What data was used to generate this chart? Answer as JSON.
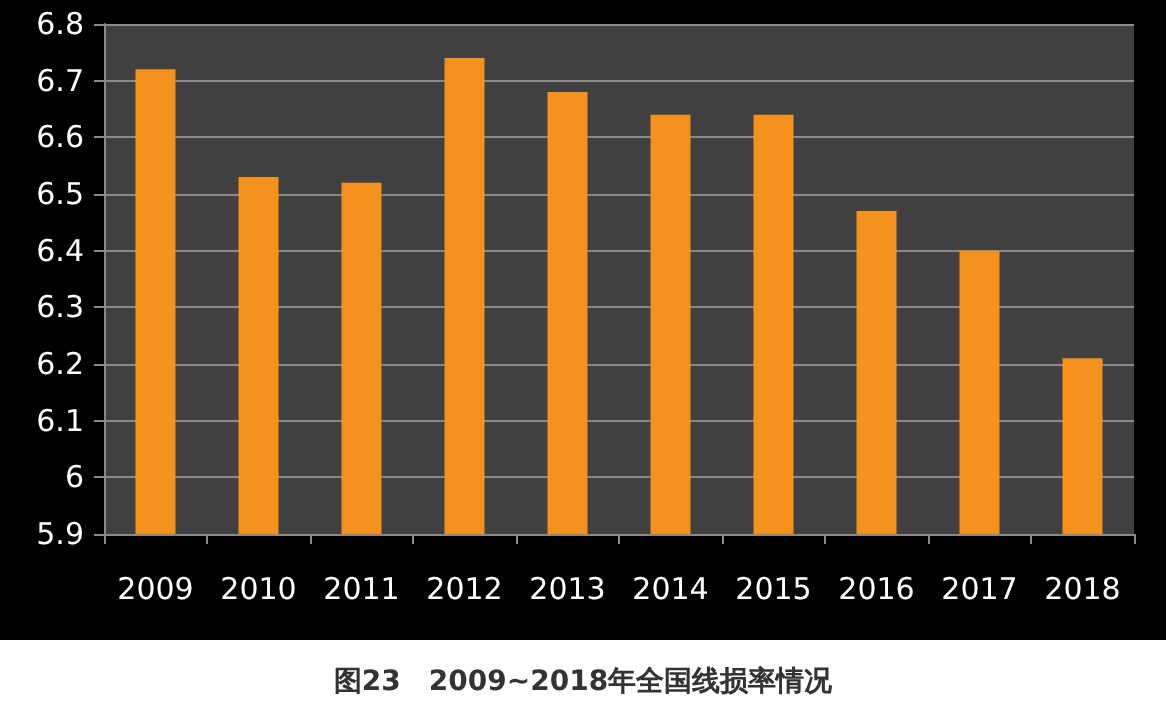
{
  "chart_data": {
    "type": "bar",
    "title": "图23　2009~2018年全国线损率情况",
    "categories": [
      "2009",
      "2010",
      "2011",
      "2012",
      "2013",
      "2014",
      "2015",
      "2016",
      "2017",
      "2018"
    ],
    "values": [
      6.72,
      6.53,
      6.52,
      6.74,
      6.68,
      6.64,
      6.64,
      6.47,
      6.4,
      6.21
    ],
    "color": "#f5921e",
    "ylim": [
      5.9,
      6.8
    ],
    "yticks": [
      5.9,
      6,
      6.1,
      6.2,
      6.3,
      6.4,
      6.5,
      6.6,
      6.7,
      6.8
    ],
    "grid": "y"
  }
}
